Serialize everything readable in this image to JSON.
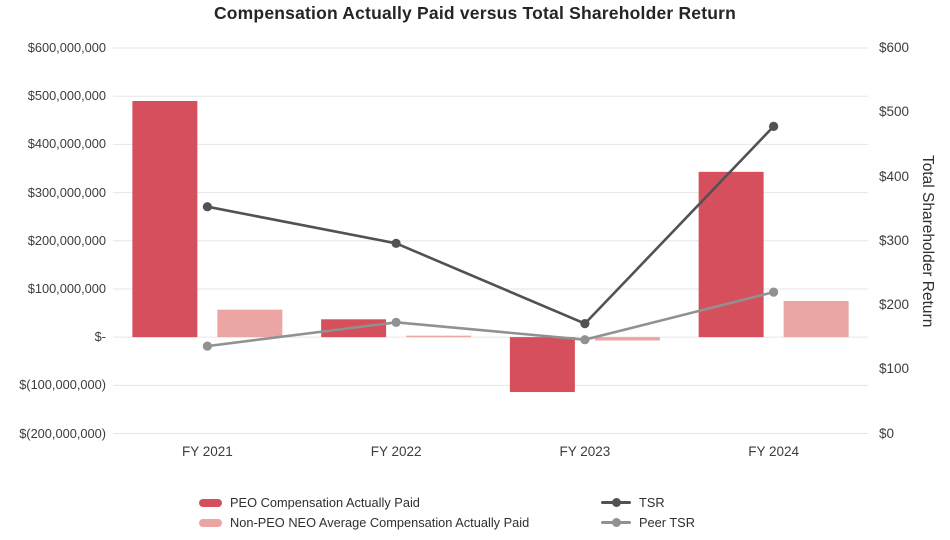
{
  "chart_data": {
    "type": "combo-bar-line",
    "title": "Compensation Actually Paid versus Total Shareholder Return",
    "categories": [
      "FY 2021",
      "FY 2022",
      "FY 2023",
      "FY 2024"
    ],
    "bar_series": [
      {
        "name": "PEO Compensation Actually Paid",
        "color": "#d5505c",
        "values": [
          490000000,
          37000000,
          -114000000,
          343000000
        ]
      },
      {
        "name": "Non-PEO NEO Average Compensation Actually Paid",
        "color": "#eba6a4",
        "values": [
          57000000,
          3000000,
          -7000000,
          75000000
        ]
      }
    ],
    "line_series": [
      {
        "name": "TSR",
        "color": "#515156",
        "values": [
          353,
          296,
          171,
          478
        ]
      },
      {
        "name": "Peer TSR",
        "color": "#919191",
        "values": [
          136,
          173,
          146,
          220
        ]
      }
    ],
    "left_axis": {
      "min": -200000000,
      "max": 600000000,
      "step": 100000000,
      "tick_labels": [
        "$600,000,000",
        "$500,000,000",
        "$400,000,000",
        "$300,000,000",
        "$200,000,000",
        "$100,000,000",
        "$-",
        "$(100,000,000)",
        "$(200,000,000)"
      ]
    },
    "right_axis": {
      "min": 0,
      "max": 600,
      "step": 100,
      "title": "Total Shareholder Return",
      "tick_labels": [
        "$600",
        "$500",
        "$400",
        "$300",
        "$200",
        "$100",
        "$0"
      ]
    },
    "grid_color": "#e6e6e6",
    "legend_position": "bottom"
  }
}
